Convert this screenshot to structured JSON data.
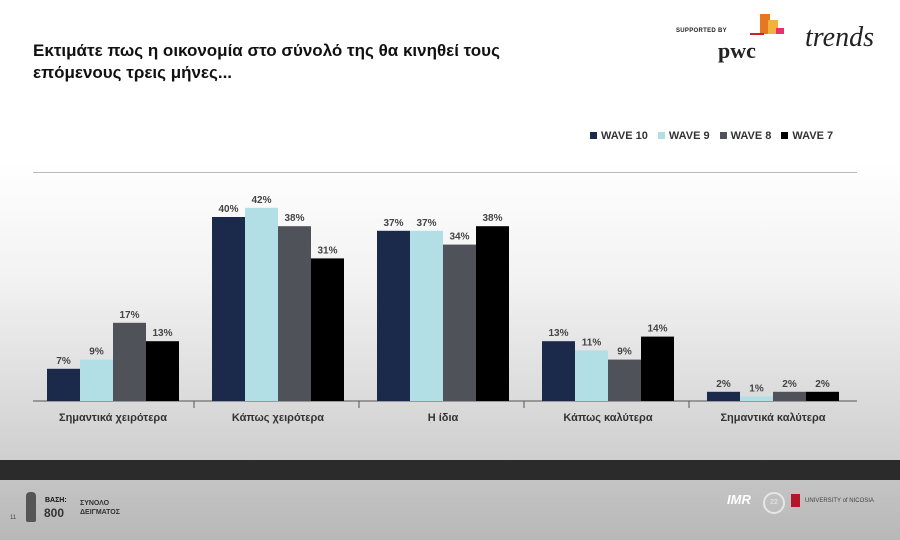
{
  "title": "Εκτιμάτε πως η οικονομία στο σύνολό της θα κινηθεί τους επόμενους τρεις μήνες...",
  "header": {
    "supported_by": "SUPPORTED BY",
    "pwc_logo": "pwc",
    "trends_logo": "trends"
  },
  "chart_data": {
    "type": "bar",
    "title": "Εκτιμάτε πως η οικονομία στο σύνολό της θα κινηθεί τους επόμενους τρεις μήνες...",
    "categories": [
      "Σημαντικά χειρότερα",
      "Κάπως χειρότερα",
      "Η ίδια",
      "Κάπως καλύτερα",
      "Σημαντικά καλύτερα"
    ],
    "series": [
      {
        "name": "WAVE 10",
        "color": "#1b2a4a",
        "values": [
          7,
          40,
          37,
          13,
          2
        ]
      },
      {
        "name": "WAVE 9",
        "color": "#b2dfe6",
        "values": [
          9,
          42,
          37,
          11,
          1
        ]
      },
      {
        "name": "WAVE 8",
        "color": "#4f5259",
        "values": [
          17,
          38,
          34,
          9,
          2
        ]
      },
      {
        "name": "WAVE 7",
        "color": "#000000",
        "values": [
          13,
          31,
          38,
          14,
          2
        ]
      }
    ],
    "value_suffix": "%",
    "legend": "top-right",
    "ylim": [
      0,
      45
    ]
  },
  "footer": {
    "page_number": "11",
    "base_label": "ΒΑΣΗ:",
    "base_value": "800",
    "sample_label": "ΣΥΝΟΛΟ ΔΕΙΓΜΑΤΟΣ",
    "imr_logo": "IMR",
    "anniversary": "22",
    "university": "UNIVERSITY of NICOSIA"
  }
}
